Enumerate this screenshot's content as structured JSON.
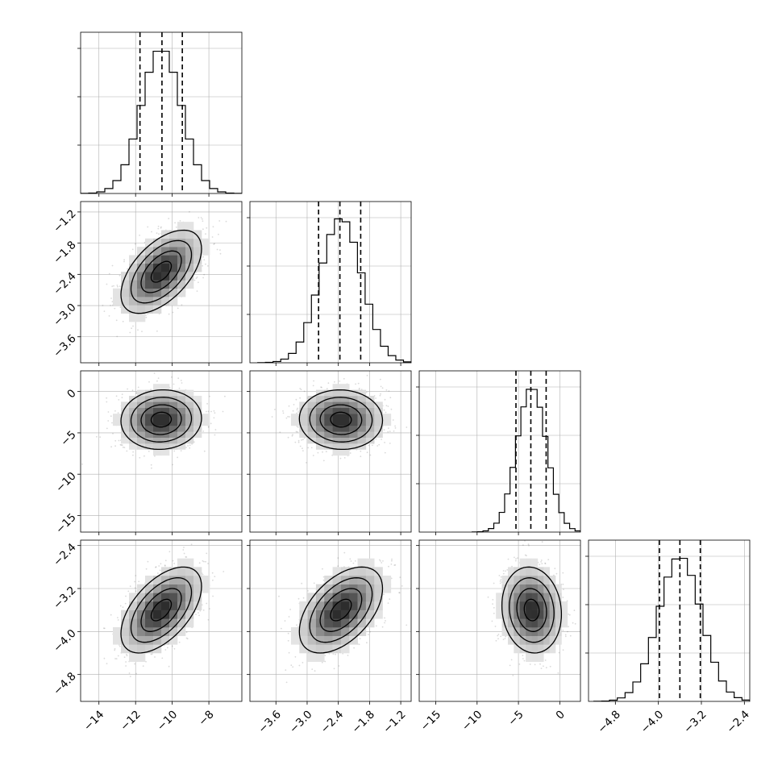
{
  "chart_data": {
    "type": "corner",
    "description": "Corner plot of 4 parameters: 1-D histograms on the diagonal with dashed quantile lines; 2-D density (gray scatter, shaded histogram, contours) in the lower triangle. No axis titles or figure title are printed.",
    "parameters": [
      {
        "range": [
          -15.0,
          -6.2
        ],
        "ticks": [
          -14,
          -12,
          -10,
          -8
        ],
        "tick_labels": [
          "−14",
          "−12",
          "−10",
          "−8"
        ],
        "mean": -10.6,
        "sd": 1.1,
        "quantiles": [
          -11.76,
          -10.56,
          -9.45
        ]
      },
      {
        "range": [
          -4.1,
          -1.0
        ],
        "ticks": [
          -3.6,
          -3.0,
          -2.4,
          -1.8,
          -1.2
        ],
        "tick_labels": [
          "−3.6",
          "−3.0",
          "−2.4",
          "−1.8",
          "−1.2"
        ],
        "mean": -2.35,
        "sd": 0.4,
        "quantiles": [
          -2.78,
          -2.37,
          -1.97
        ]
      },
      {
        "range": [
          -17.0,
          2.5
        ],
        "ticks": [
          -15,
          -10,
          -5,
          0
        ],
        "tick_labels": [
          "−15",
          "−10",
          "−5",
          "0"
        ],
        "mean": -3.4,
        "sd": 1.8,
        "quantiles": [
          -5.3,
          -3.5,
          -1.65
        ]
      },
      {
        "range": [
          -5.3,
          -2.3
        ],
        "ticks": [
          -4.8,
          -4.0,
          -3.2,
          -2.4
        ],
        "tick_labels": [
          "−4.8",
          "−4.0",
          "−3.2",
          "−2.4"
        ],
        "mean": -3.6,
        "sd": 0.4,
        "quantiles": [
          -3.98,
          -3.6,
          -3.22
        ]
      }
    ],
    "correlations": {
      "0-1": 0.55,
      "0-2": 0.05,
      "1-2": -0.03,
      "0-3": 0.55,
      "1-3": 0.5,
      "2-3": -0.1
    },
    "contour_levels_sigma": [
      0.5,
      1.0,
      1.5,
      2.0
    ],
    "histogram_bins": 20,
    "grid": true,
    "legend": "none"
  },
  "style": {
    "line_color": "#000000",
    "scatter_color": "#555555",
    "grid_color": "#b0b0b0",
    "background": "#ffffff"
  }
}
